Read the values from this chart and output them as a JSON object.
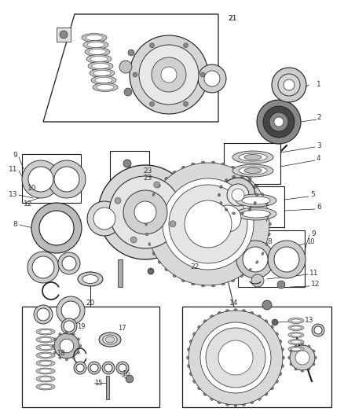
{
  "bg_color": "#ffffff",
  "fig_width": 4.38,
  "fig_height": 5.33,
  "dpi": 100,
  "line_color": "#1a1a1a",
  "label_color": "#333333",
  "label_fontsize": 6.5,
  "border_lw": 0.9
}
